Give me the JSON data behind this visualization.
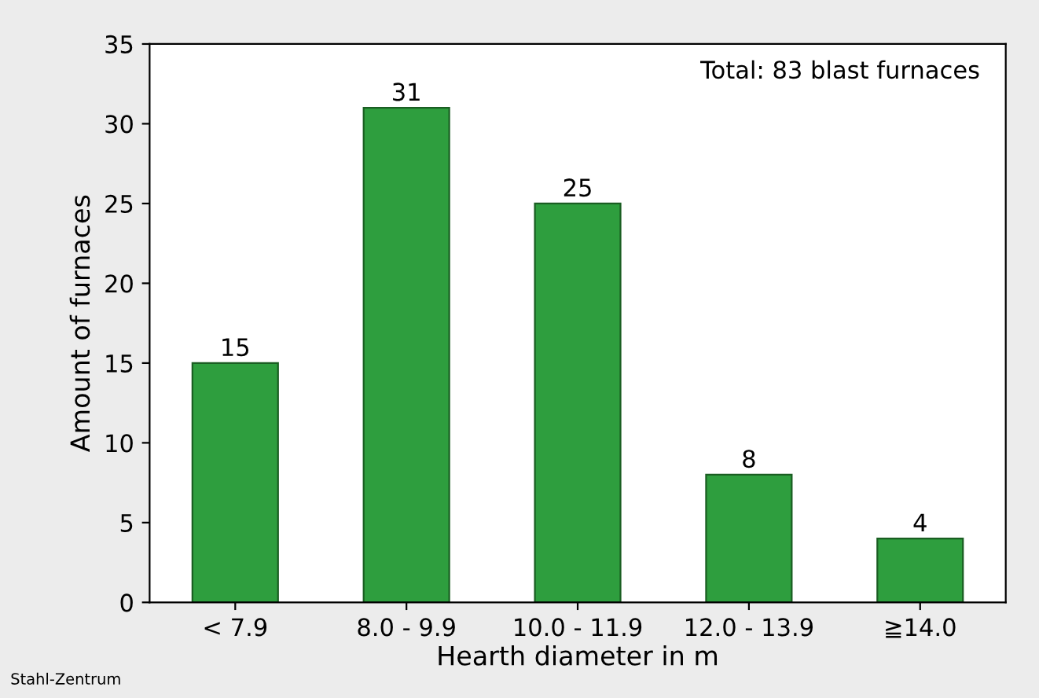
{
  "chart_data": {
    "type": "bar",
    "xlabel": "Hearth diameter in m",
    "ylabel": "Amount of furnaces",
    "categories": [
      "< 7.9",
      "8.0 - 9.9",
      "10.0 - 11.9",
      "12.0 - 13.9",
      "≧14.0"
    ],
    "values": [
      15,
      31,
      25,
      8,
      4
    ],
    "color": "#2e9e3e",
    "data_labels": true,
    "ylim": [
      0,
      35
    ],
    "yticks": [
      0,
      5,
      10,
      15,
      20,
      25,
      30,
      35
    ],
    "grid": false,
    "annotations": [
      "Total: 83 blast furnaces",
      "Stahl-Zentrum"
    ]
  }
}
